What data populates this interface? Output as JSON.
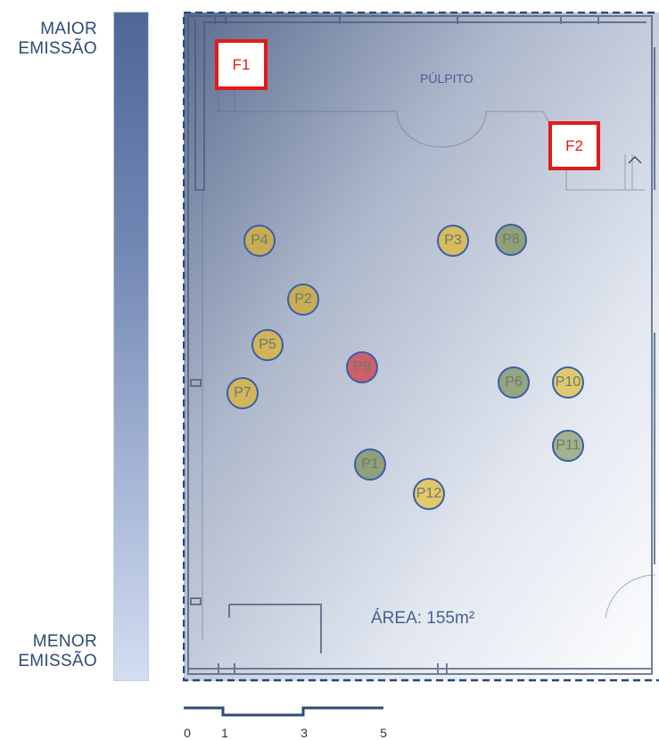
{
  "legend": {
    "top_line1": "MAIOR",
    "top_line2": "EMISSÃO",
    "bottom_line1": "MENOR",
    "bottom_line2": "EMISSÃO"
  },
  "plan": {
    "pulpit_label": "PÚLPITO",
    "area_label": "ÁREA: 155m²"
  },
  "labels": [
    {
      "id": "F1",
      "text": "F1"
    },
    {
      "id": "F2",
      "text": "F2"
    }
  ],
  "points": [
    {
      "label": "P4",
      "color": "#c9ac55"
    },
    {
      "label": "P3",
      "color": "#d6bb5f"
    },
    {
      "label": "P8",
      "color": "#8fa07a"
    },
    {
      "label": "P2",
      "color": "#c9ac55"
    },
    {
      "label": "P5",
      "color": "#d2b45a"
    },
    {
      "label": "P9",
      "color": "#cc5f6a"
    },
    {
      "label": "P7",
      "color": "#d2b45a"
    },
    {
      "label": "P6",
      "color": "#95a582"
    },
    {
      "label": "P10",
      "color": "#e0c86e"
    },
    {
      "label": "P11",
      "color": "#a2b18e"
    },
    {
      "label": "P1",
      "color": "#8fa07a"
    },
    {
      "label": "P12",
      "color": "#e2c86a"
    }
  ],
  "scale": [
    "0",
    "1",
    "3",
    "5"
  ]
}
